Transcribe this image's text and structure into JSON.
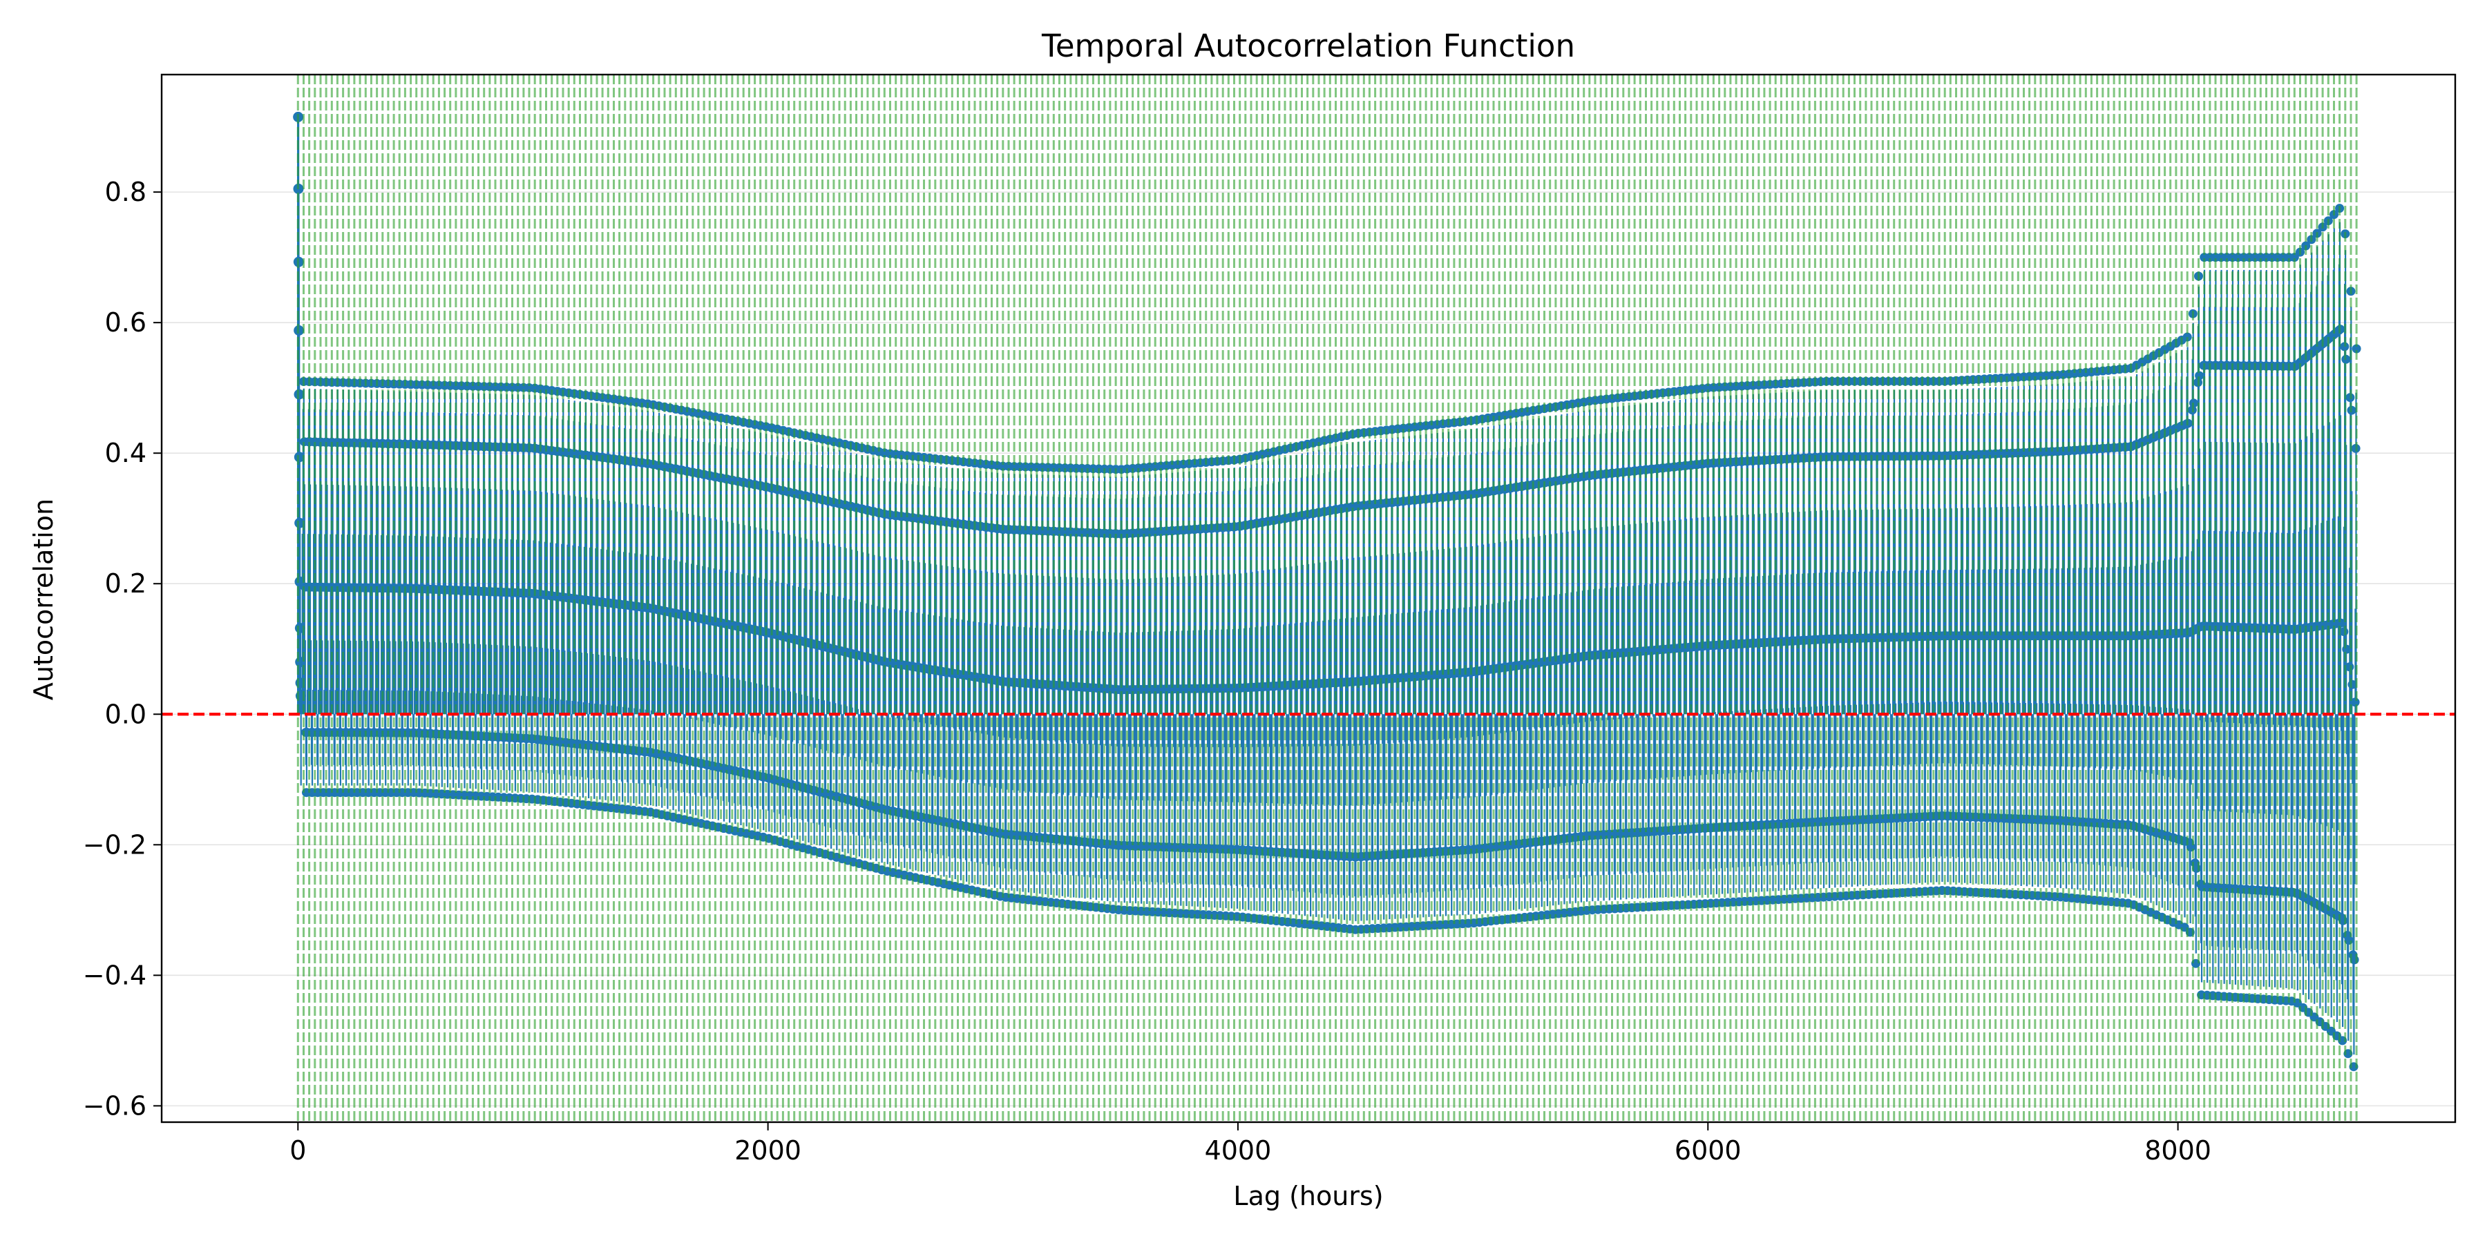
{
  "chart_data": {
    "type": "scatter",
    "subtype": "stem",
    "title": "Temporal Autocorrelation Function",
    "xlabel": "Lag (hours)",
    "ylabel": "Autocorrelation",
    "xlim": [
      -580,
      9180
    ],
    "ylim": [
      -0.625,
      0.98
    ],
    "xticks": [
      0,
      2000,
      4000,
      6000,
      8000
    ],
    "yticks": [
      -0.6,
      -0.4,
      -0.2,
      0.0,
      0.2,
      0.4,
      0.6,
      0.8
    ],
    "ytick_labels": [
      "−0.6",
      "−0.4",
      "−0.2",
      "0.0",
      "0.2",
      "0.4",
      "0.6",
      "0.8"
    ],
    "grid": "horizontal",
    "legend": "none",
    "max_lag": 8760,
    "period_hours": 24,
    "reference_line": {
      "y": 0.0,
      "style": "dashed",
      "color": "#ff0000"
    },
    "confidence_band": {
      "lower": -0.0209,
      "upper": 0.0209,
      "color": "#2ca02c",
      "style": "dashed"
    },
    "initial_lags": {
      "x": [
        1,
        2,
        3,
        4,
        5,
        6,
        7,
        8,
        9,
        10,
        11,
        12
      ],
      "y": [
        0.915,
        0.805,
        0.693,
        0.588,
        0.49,
        0.394,
        0.293,
        0.203,
        0.132,
        0.08,
        0.048,
        0.028
      ]
    },
    "daily_envelope": {
      "x": [
        0,
        500,
        1000,
        1500,
        2000,
        2500,
        3000,
        3500,
        4000,
        4500,
        5000,
        5500,
        6000,
        6500,
        7000,
        7500,
        7800,
        8050,
        8100,
        8500,
        8700,
        8760
      ],
      "high": [
        0.51,
        0.505,
        0.5,
        0.475,
        0.44,
        0.4,
        0.38,
        0.375,
        0.39,
        0.43,
        0.45,
        0.48,
        0.5,
        0.51,
        0.51,
        0.52,
        0.53,
        0.58,
        0.7,
        0.7,
        0.78,
        0.56
      ],
      "low": [
        -0.12,
        -0.12,
        -0.13,
        -0.15,
        -0.19,
        -0.24,
        -0.28,
        -0.3,
        -0.31,
        -0.33,
        -0.32,
        -0.3,
        -0.29,
        -0.28,
        -0.27,
        -0.28,
        -0.29,
        -0.33,
        -0.43,
        -0.44,
        -0.5,
        -0.55
      ]
    },
    "series_color": "#1f77b4"
  }
}
